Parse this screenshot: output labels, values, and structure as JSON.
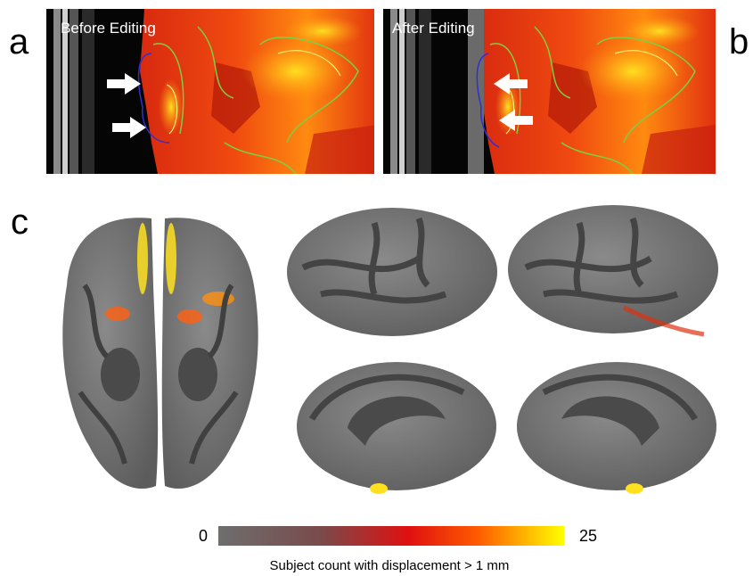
{
  "panels": [
    {
      "label": "a",
      "title": "Before Editing"
    },
    {
      "label": "b",
      "title": "After Editing"
    }
  ],
  "panel_c": {
    "label": "c"
  },
  "colorbar": {
    "min": 0,
    "max": 25,
    "label": "Subject count with displacement > 1 mm"
  }
}
